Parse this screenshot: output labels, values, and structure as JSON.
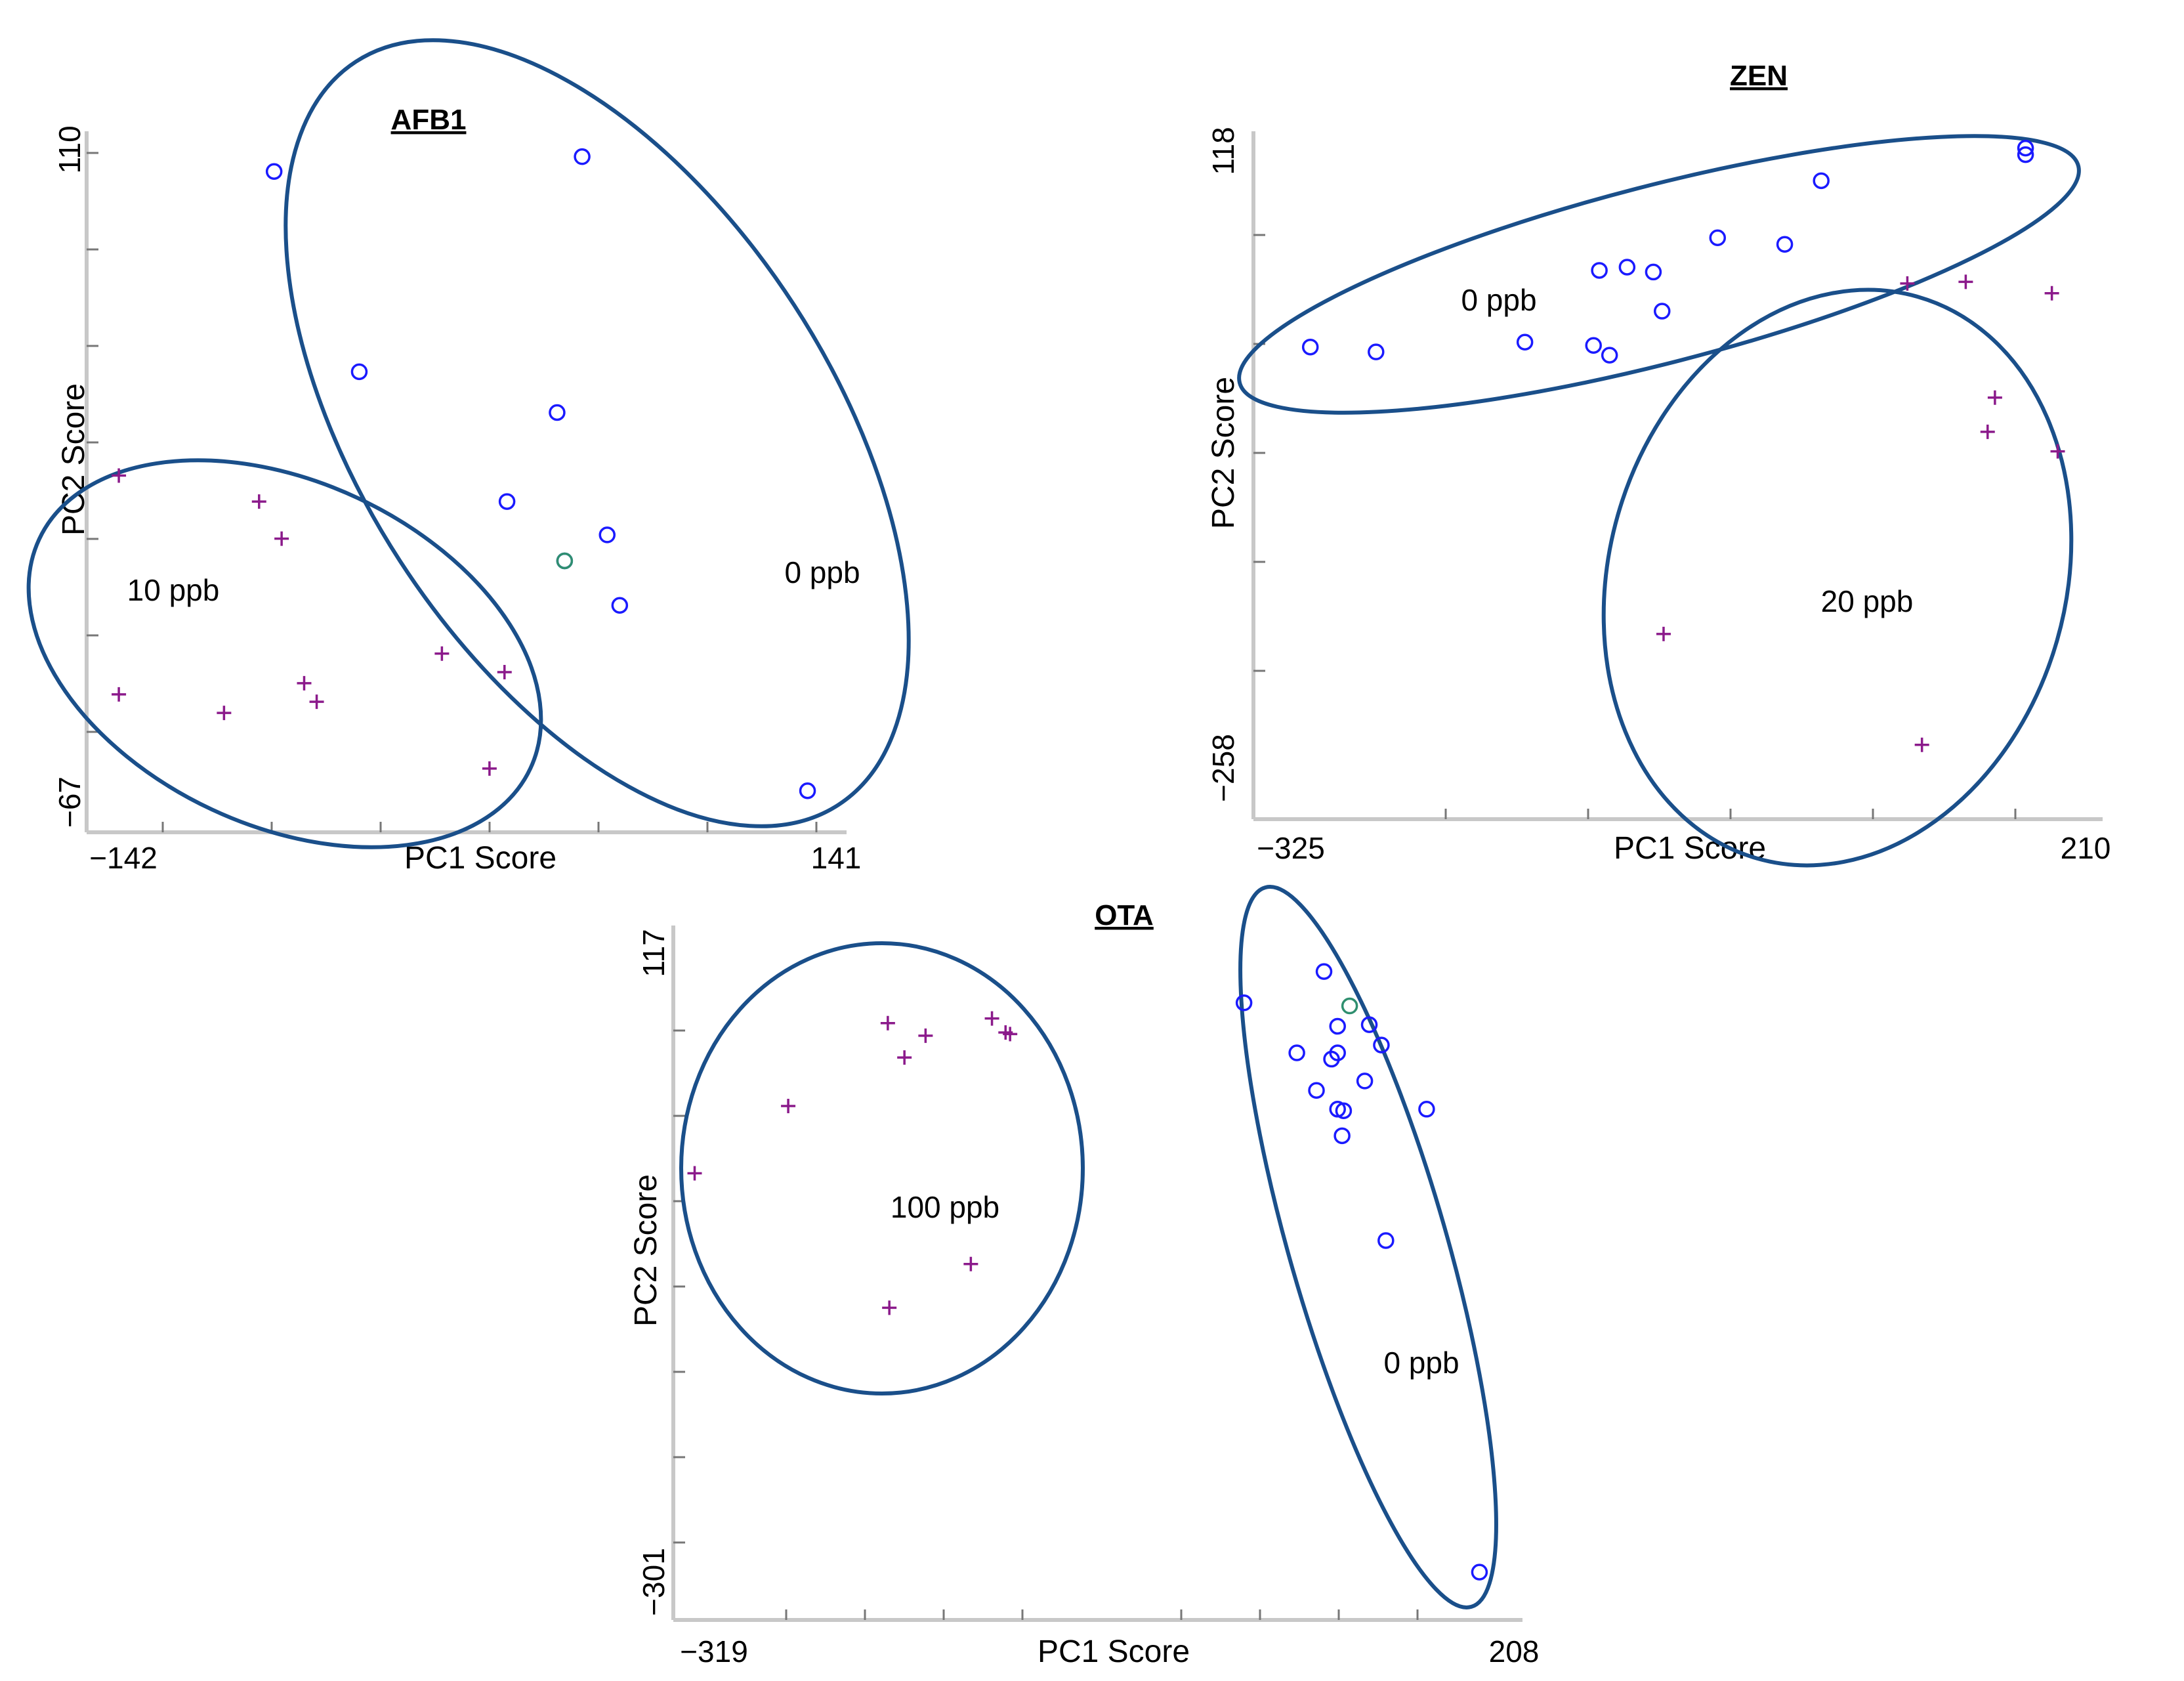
{
  "colors": {
    "class_zero": "#1a1aff",
    "class_contaminated": "#8b1a8b",
    "highlight": "#2f8f6f",
    "ellipse": "#1a4f8a",
    "axis": "#c8c8c8"
  },
  "chart_data": [
    {
      "type": "scatter",
      "title": "AFB1",
      "xlabel": "PC1 Score",
      "ylabel": "PC2 Score",
      "xlim": [
        -142,
        141
      ],
      "ylim": [
        -67,
        110
      ],
      "x_tick_labels": [
        "−142",
        "141"
      ],
      "y_tick_labels": [
        "110",
        "−67"
      ],
      "groups": [
        {
          "label": "0 ppb",
          "marker": "circle"
        },
        {
          "label": "10 ppb",
          "marker": "plus"
        }
      ],
      "series": [
        {
          "name": "0 ppb",
          "marker": "circle",
          "points": [
            {
              "x": -75,
              "y": 105
            },
            {
              "x": 48,
              "y": 109
            },
            {
              "x": -41,
              "y": 51
            },
            {
              "x": 38,
              "y": 40
            },
            {
              "x": 18,
              "y": 16
            },
            {
              "x": 41,
              "y": 0
            },
            {
              "x": 58,
              "y": 7
            },
            {
              "x": 63,
              "y": -12
            },
            {
              "x": 138,
              "y": -62
            }
          ]
        },
        {
          "name": "highlight",
          "marker": "circle",
          "highlight": true,
          "points": [
            {
              "x": 41,
              "y": 0
            }
          ]
        },
        {
          "name": "10 ppb",
          "marker": "plus",
          "points": [
            {
              "x": -137,
              "y": 23
            },
            {
              "x": -81,
              "y": 16
            },
            {
              "x": -72,
              "y": 6
            },
            {
              "x": -137,
              "y": -36
            },
            {
              "x": -95,
              "y": -41
            },
            {
              "x": -63,
              "y": -33
            },
            {
              "x": -58,
              "y": -38
            },
            {
              "x": -8,
              "y": -25
            },
            {
              "x": 17,
              "y": -30
            },
            {
              "x": 11,
              "y": -56
            }
          ]
        }
      ]
    },
    {
      "type": "scatter",
      "title": "ZEN",
      "xlabel": "PC1 Score",
      "ylabel": "PC2 Score",
      "xlim": [
        -325,
        210
      ],
      "ylim": [
        -258,
        118
      ],
      "x_tick_labels": [
        "−325",
        "210"
      ],
      "y_tick_labels": [
        "118",
        "−258"
      ],
      "groups": [
        {
          "label": "0 ppb",
          "marker": "circle"
        },
        {
          "label": "20 ppb",
          "marker": "plus"
        }
      ],
      "series": [
        {
          "name": "0 ppb",
          "marker": "circle",
          "points": [
            {
              "x": -313,
              "y": 5
            },
            {
              "x": -268,
              "y": 2
            },
            {
              "x": -166,
              "y": 8
            },
            {
              "x": -119,
              "y": 6
            },
            {
              "x": -108,
              "y": 0
            },
            {
              "x": -115,
              "y": 52
            },
            {
              "x": -96,
              "y": 54
            },
            {
              "x": -78,
              "y": 51
            },
            {
              "x": -72,
              "y": 27
            },
            {
              "x": -34,
              "y": 72
            },
            {
              "x": 12,
              "y": 68
            },
            {
              "x": 37,
              "y": 107
            },
            {
              "x": 177,
              "y": 127
            },
            {
              "x": 177,
              "y": 123
            }
          ]
        },
        {
          "name": "20 ppb",
          "marker": "plus",
          "points": [
            {
              "x": 96,
              "y": 44
            },
            {
              "x": 136,
              "y": 45
            },
            {
              "x": 195,
              "y": 38
            },
            {
              "x": 156,
              "y": -26
            },
            {
              "x": 151,
              "y": -47
            },
            {
              "x": 199,
              "y": -59
            },
            {
              "x": -71,
              "y": -171
            },
            {
              "x": 106,
              "y": -239
            }
          ]
        }
      ]
    },
    {
      "type": "scatter",
      "title": "OTA",
      "xlabel": "PC1 Score",
      "ylabel": "PC2 Score",
      "xlim": [
        -319,
        208
      ],
      "ylim": [
        -301,
        117
      ],
      "x_tick_labels": [
        "−319",
        "208"
      ],
      "y_tick_labels": [
        "117",
        "−301"
      ],
      "groups": [
        {
          "label": "100 ppb",
          "marker": "plus"
        },
        {
          "label": "0 ppb",
          "marker": "circle"
        }
      ],
      "series": [
        {
          "name": "100 ppb",
          "marker": "plus",
          "points": [
            {
              "x": -196,
              "y": 68
            },
            {
              "x": -171,
              "y": 60
            },
            {
              "x": -127,
              "y": 71
            },
            {
              "x": -118,
              "y": 62
            },
            {
              "x": -115,
              "y": 61
            },
            {
              "x": -185,
              "y": 46
            },
            {
              "x": -262,
              "y": 15
            },
            {
              "x": -324,
              "y": -28
            },
            {
              "x": -141,
              "y": -86
            },
            {
              "x": -195,
              "y": -114
            }
          ]
        },
        {
          "name": "0 ppb",
          "marker": "circle",
          "points": [
            {
              "x": 93,
              "y": 101
            },
            {
              "x": 40,
              "y": 81
            },
            {
              "x": 102,
              "y": 66
            },
            {
              "x": 123,
              "y": 67
            },
            {
              "x": 75,
              "y": 49
            },
            {
              "x": 102,
              "y": 49
            },
            {
              "x": 98,
              "y": 45
            },
            {
              "x": 131,
              "y": 54
            },
            {
              "x": 120,
              "y": 31
            },
            {
              "x": 88,
              "y": 25
            },
            {
              "x": 102,
              "y": 13
            },
            {
              "x": 106,
              "y": 12
            },
            {
              "x": 105,
              "y": -4
            },
            {
              "x": 161,
              "y": 13
            },
            {
              "x": 134,
              "y": -71
            },
            {
              "x": 196,
              "y": -283
            }
          ]
        },
        {
          "name": "highlight",
          "marker": "circle",
          "highlight": true,
          "points": [
            {
              "x": 110,
              "y": 79
            }
          ]
        }
      ]
    }
  ]
}
